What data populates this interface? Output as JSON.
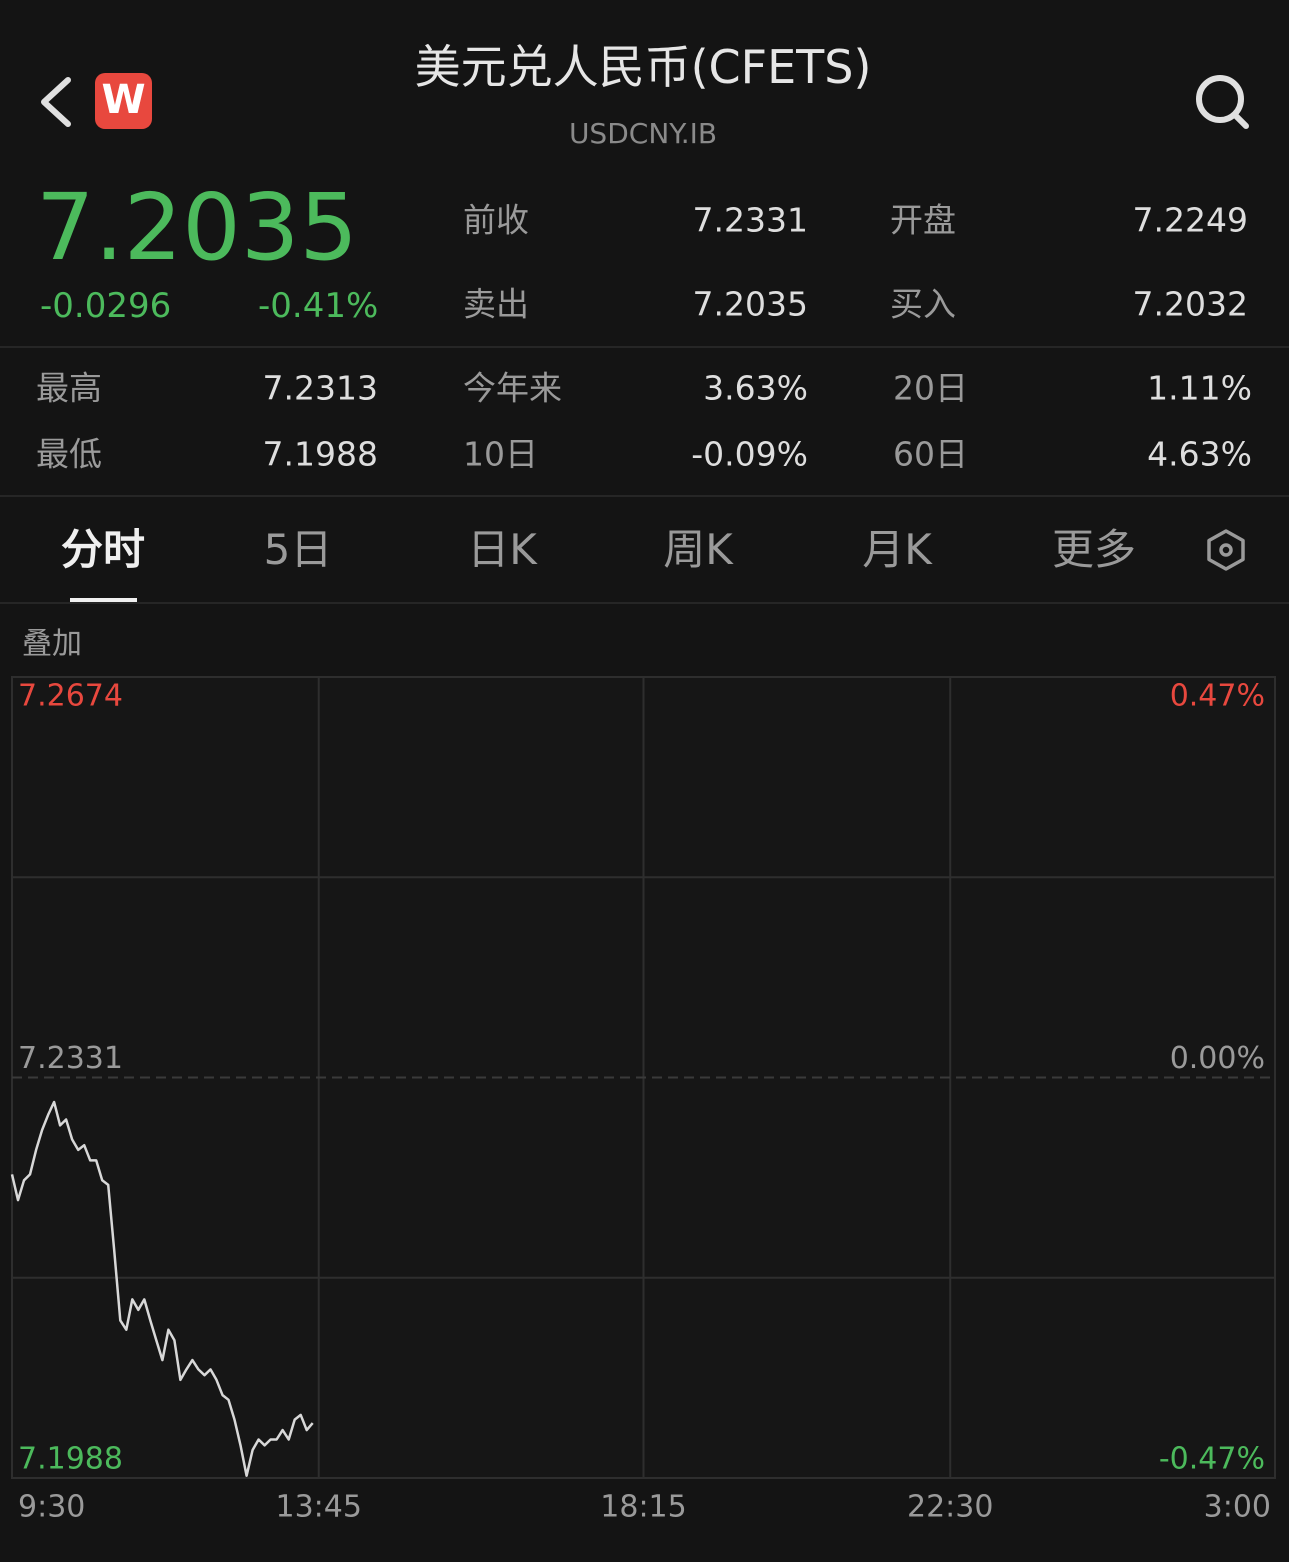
{
  "header": {
    "logo": "W",
    "title": "美元兑人民币(CFETS)",
    "code": "USDCNY.IB"
  },
  "quote": {
    "price": "7.2035",
    "change": "-0.0296",
    "change_pct": "-0.41%"
  },
  "quote_stats": [
    [
      "前收",
      "7.2331",
      "开盘",
      "7.2249"
    ],
    [
      "卖出",
      "7.2035",
      "买入",
      "7.2032"
    ]
  ],
  "range_stats": [
    [
      "最高",
      "7.2313",
      "今年来",
      "3.63%",
      "20日",
      "1.11%"
    ],
    [
      "最低",
      "7.1988",
      "10日",
      "-0.09%",
      "60日",
      "4.63%"
    ]
  ],
  "tabs": [
    "分时",
    "5日",
    "日K",
    "周K",
    "月K",
    "更多"
  ],
  "overlay": "叠加",
  "chart_data": {
    "type": "line",
    "color": "#d8d8d8",
    "up_color": "#e8483e",
    "down_color": "#4cba5c",
    "x": [
      "9:30",
      "9:35",
      "9:40",
      "9:45",
      "9:50",
      "9:55",
      "10:00",
      "10:05",
      "10:10",
      "10:15",
      "10:20",
      "10:25",
      "10:30",
      "10:35",
      "10:40",
      "10:45",
      "10:50",
      "10:55",
      "11:00",
      "11:05",
      "11:10",
      "11:15",
      "11:20",
      "11:25",
      "11:30",
      "11:35",
      "11:40",
      "11:45",
      "11:50",
      "11:55",
      "12:00",
      "12:05",
      "12:10",
      "12:15",
      "12:20",
      "12:25",
      "12:30",
      "12:35",
      "12:40",
      "12:45",
      "12:50",
      "12:55",
      "13:00",
      "13:05",
      "13:10",
      "13:15",
      "13:20",
      "13:25",
      "13:30",
      "13:35",
      "13:40"
    ],
    "values": [
      7.2248,
      7.2226,
      7.2243,
      7.2248,
      7.2269,
      7.2286,
      7.2299,
      7.231,
      7.229,
      7.2295,
      7.2278,
      7.2269,
      7.2273,
      7.226,
      7.226,
      7.2243,
      7.2239,
      7.2183,
      7.2123,
      7.2115,
      7.2141,
      7.2132,
      7.2141,
      7.2123,
      7.2106,
      7.2089,
      7.2115,
      7.2106,
      7.2072,
      7.2081,
      7.2089,
      7.2081,
      7.2076,
      7.2081,
      7.2072,
      7.2059,
      7.2055,
      7.2038,
      7.2016,
      7.199,
      7.2012,
      7.2021,
      7.2016,
      7.2021,
      7.2021,
      7.2029,
      7.2021,
      7.2038,
      7.2042,
      7.2029,
      7.2035
    ],
    "xlim": [
      "9:30",
      "3:00"
    ],
    "xticks": [
      "9:30",
      "13:45",
      "18:15",
      "22:30",
      "3:00"
    ],
    "ylim": [
      7.1988,
      7.2674
    ],
    "yticks": [
      7.2674,
      7.2331,
      7.1988
    ],
    "y2lim": [
      -0.47,
      0.47
    ],
    "y2ticks": [
      {
        "value": 0.47,
        "label": "0.47%"
      },
      {
        "value": 0,
        "label": "0.00%"
      },
      {
        "value": -0.47,
        "label": "-0.47%"
      }
    ],
    "grid": true
  }
}
